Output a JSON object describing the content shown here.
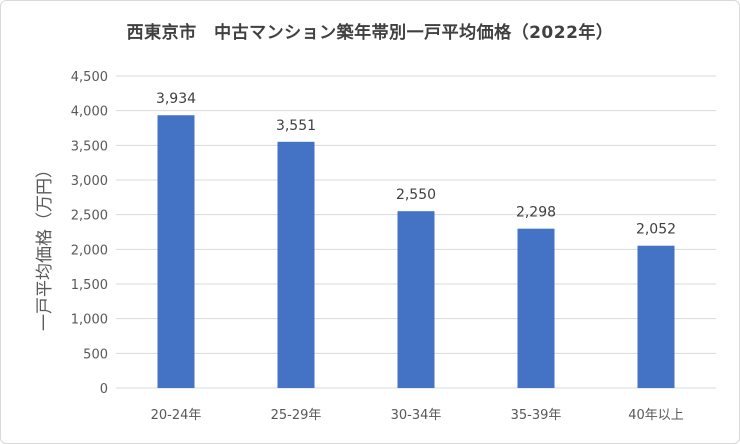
{
  "chart_data": {
    "type": "bar",
    "title": "西東京市　中古マンション築年帯別一戸平均価格（2022年）",
    "xlabel": "",
    "ylabel": "一戸平均価格（万円）",
    "categories": [
      "20-24年",
      "25-29年",
      "30-34年",
      "35-39年",
      "40年以上"
    ],
    "values": [
      3934,
      3551,
      2550,
      2298,
      2052
    ],
    "data_labels": [
      "3,934",
      "3,551",
      "2,550",
      "2,298",
      "2,052"
    ],
    "ylim": [
      0,
      4500
    ],
    "yticks": [
      "0",
      "500",
      "1,000",
      "1,500",
      "2,000",
      "2,500",
      "3,000",
      "3,500",
      "4,000",
      "4,500"
    ],
    "ytick_values": [
      0,
      500,
      1000,
      1500,
      2000,
      2500,
      3000,
      3500,
      4000,
      4500
    ],
    "grid": true,
    "bar_color": "#4472c4",
    "grid_color": "#d9d9d9"
  }
}
